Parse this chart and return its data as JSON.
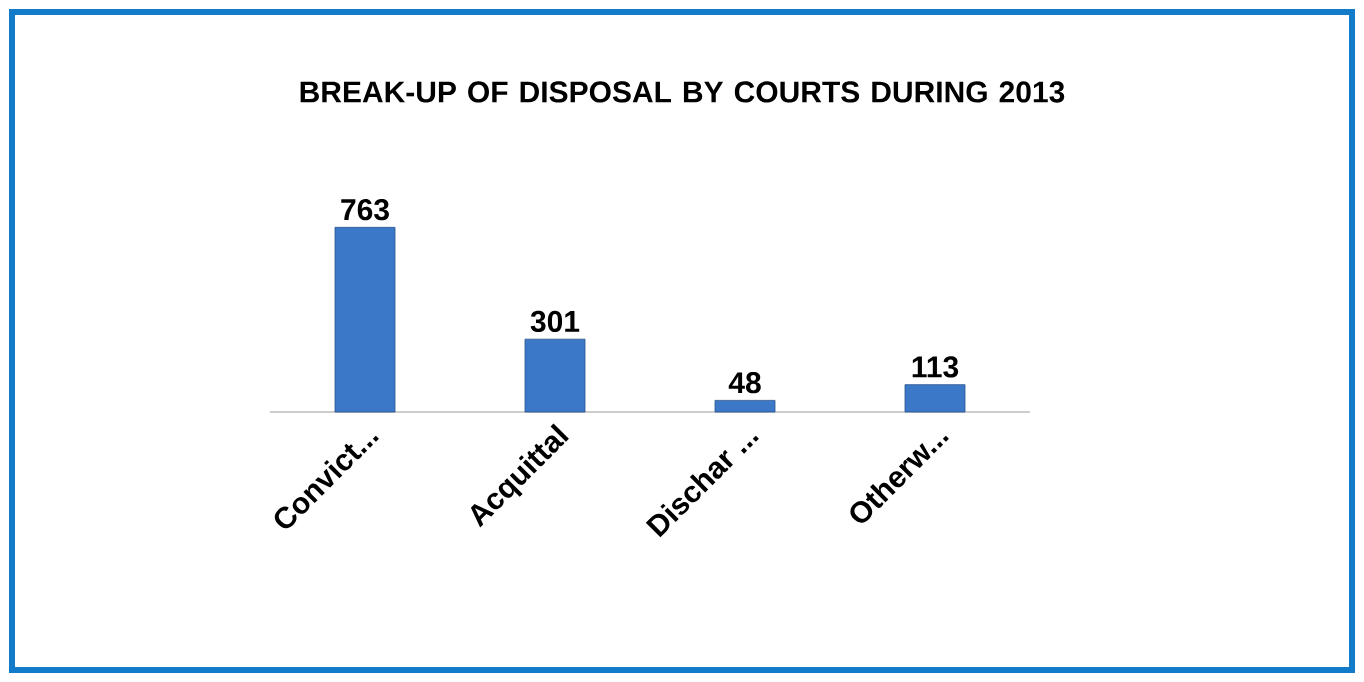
{
  "chart_data": {
    "type": "bar",
    "title": "BREAK-UP OF DISPOSAL BY COURTS DURING 2013",
    "categories": [
      "Convict...",
      "Acquittal",
      "Dischar ...",
      "Otherw..."
    ],
    "values": [
      763,
      301,
      48,
      113
    ],
    "color": "#3b78c8",
    "data_labels": true
  }
}
